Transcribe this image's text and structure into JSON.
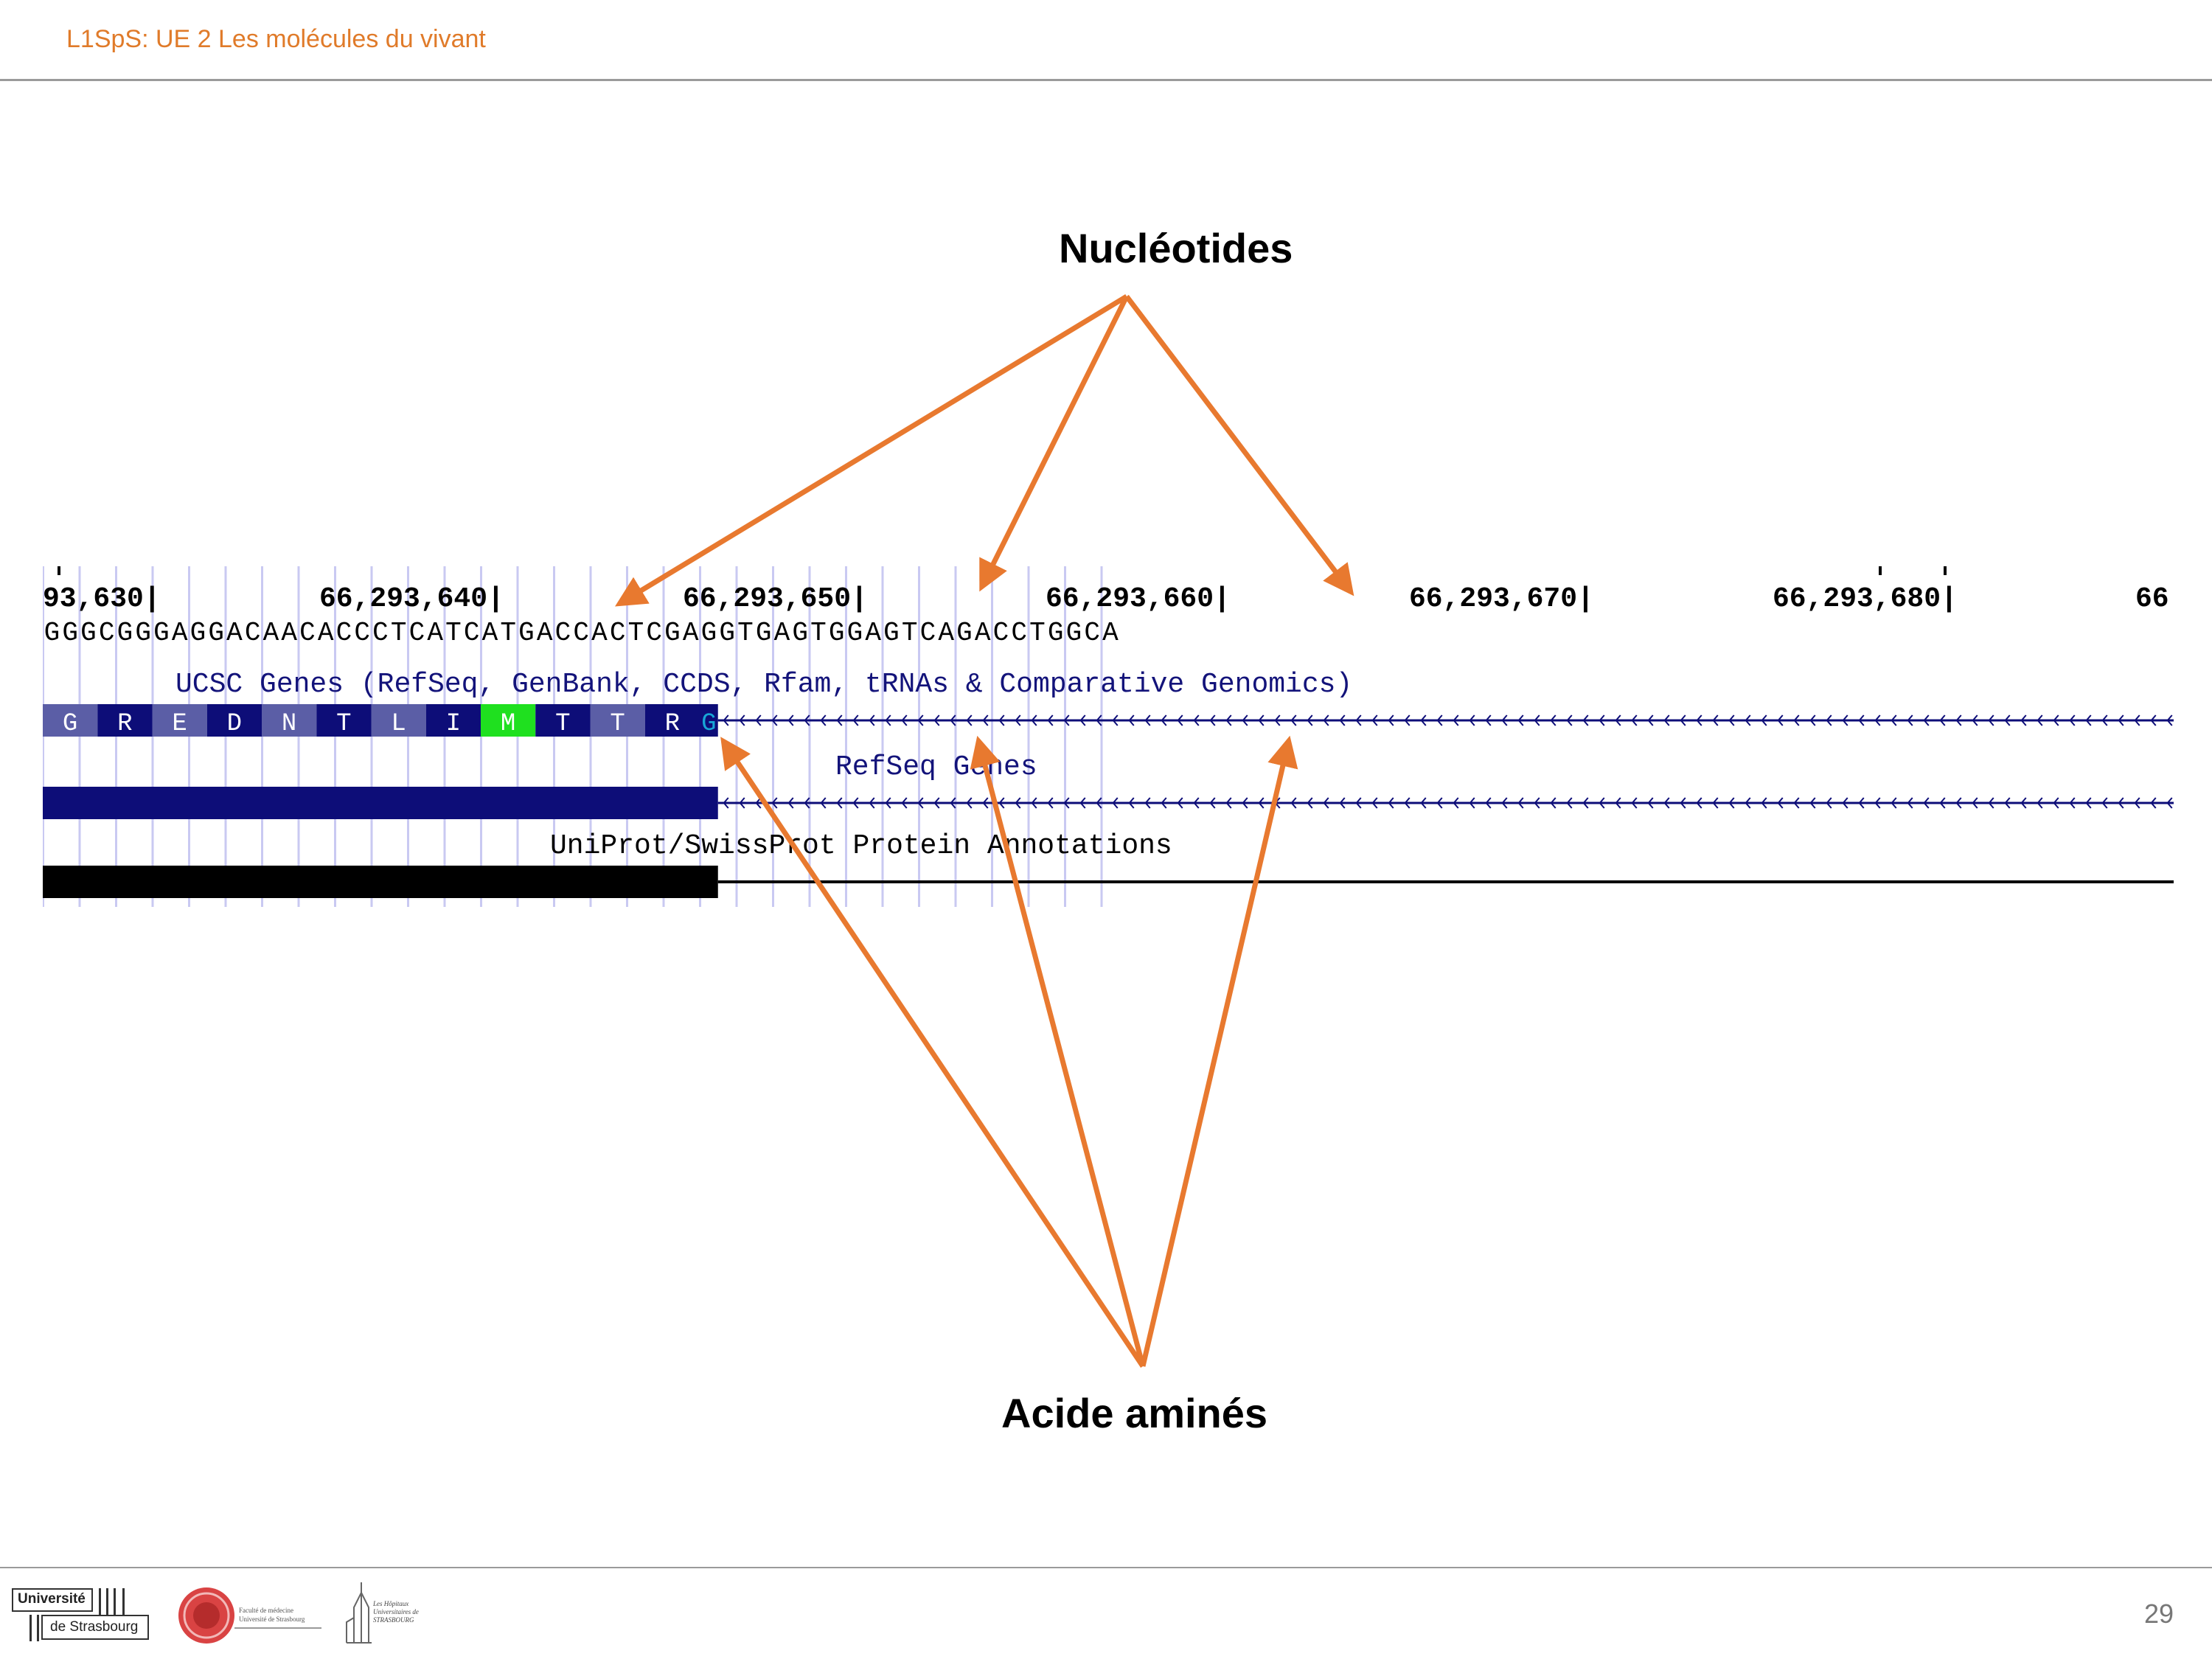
{
  "header": {
    "title": "L1SpS: UE 2 Les molécules du vivant"
  },
  "labels": {
    "nucleotides": "Nucléotides",
    "amino_acids": "Acide aminés"
  },
  "browser": {
    "positions": [
      "93,630|",
      "66,293,640|",
      "66,293,650|",
      "66,293,660|",
      "66,293,670|",
      "66,293,680|",
      "66"
    ],
    "sequence": [
      "G",
      "G",
      "G",
      "C",
      "G",
      "G",
      "G",
      "A",
      "G",
      "G",
      "A",
      "C",
      "A",
      "A",
      "C",
      "A",
      "C",
      "C",
      "C",
      "T",
      "C",
      "A",
      "T",
      "C",
      "A",
      "T",
      "G",
      "A",
      "C",
      "C",
      "A",
      "C",
      "T",
      "C",
      "G",
      "A",
      "G",
      "G",
      "T",
      "G",
      "A",
      "G",
      "T",
      "G",
      "G",
      "A",
      "G",
      "T",
      "C",
      "A",
      "G",
      "A",
      "C",
      "C",
      "T",
      "G",
      "G",
      "C",
      "A"
    ],
    "ucsc_track_title": "UCSC Genes (RefSeq, GenBank, CCDS, Rfam, tRNAs & Comparative Genomics)",
    "amino_acids": [
      {
        "aa": "G",
        "color": "#5b5ea6"
      },
      {
        "aa": "R",
        "color": "#0d0d78"
      },
      {
        "aa": "E",
        "color": "#5b5ea6"
      },
      {
        "aa": "D",
        "color": "#0d0d78"
      },
      {
        "aa": "N",
        "color": "#5b5ea6"
      },
      {
        "aa": "T",
        "color": "#0d0d78"
      },
      {
        "aa": "L",
        "color": "#5b5ea6"
      },
      {
        "aa": "I",
        "color": "#0d0d78"
      },
      {
        "aa": "M",
        "color": "#1fe01f"
      },
      {
        "aa": "T",
        "color": "#0d0d78"
      },
      {
        "aa": "T",
        "color": "#5b5ea6"
      },
      {
        "aa": "R",
        "color": "#0d0d78"
      }
    ],
    "partial_aa": "G",
    "refseq_track_title": "RefSeq Genes",
    "uniprot_track_title": "UniProt/SwissProt Protein Annotations"
  },
  "colors": {
    "accent": "#e8792f",
    "track_dark": "#0d0d78",
    "track_light": "#5b5ea6",
    "start_codon": "#1fe01f",
    "grid": "#c9c9f2",
    "text_blue": "#13137a"
  },
  "footer": {
    "page_number": "29",
    "logo_university_line1": "Université",
    "logo_university_line2": "de Strasbourg",
    "logo_faculty": "Faculté de médecine Université de Strasbourg",
    "logo_hospitals": "Les Hôpitaux Universitaires de STRASBOURG"
  }
}
